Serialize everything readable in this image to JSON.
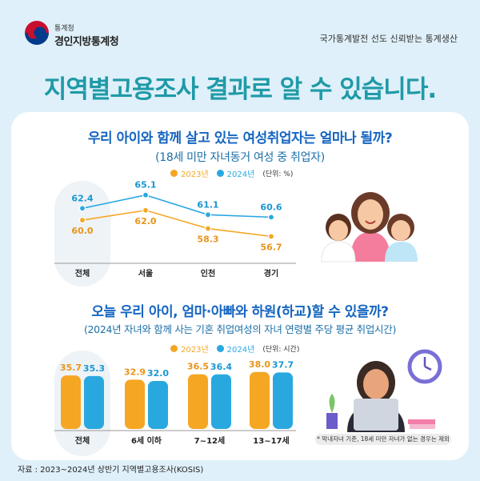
{
  "header": {
    "agency_small": "통계청",
    "agency_name": "경인지방통계청",
    "slogan": "국가통계발전 선도 신뢰받는 통계생산",
    "main_title": "지역별고용조사 결과로 알 수 있습니다."
  },
  "colors": {
    "y2023": "#f5a623",
    "y2024": "#29a8e0",
    "title_teal": "#1f9aa7",
    "title_blue": "#1565c0"
  },
  "section1": {
    "title": "우리 아이와 함께 살고 있는 여성취업자는 얼마나 될까?",
    "subtitle": "(18세 미만 자녀동거 여성 중 취업자)",
    "legend_2023": "2023년",
    "legend_2024": "2024년",
    "unit": "(단위: %)"
  },
  "section2": {
    "title": "오늘 우리 아이, 엄마·아빠와 하원(하교)할 수 있을까?",
    "subtitle": "(2024년 자녀와 함께 사는 기혼 취업여성의 자녀 연령별 주당 평균 취업시간)",
    "legend_2023": "2023년",
    "legend_2024": "2024년",
    "unit": "(단위: 시간)",
    "note": "* 막내자녀 기준, 18세 미만 자녀가 없는 경우는 제외"
  },
  "source": "자료 : 2023~2024년 상반기 지역별고용조사(KOSIS)",
  "chart_data": [
    {
      "type": "line",
      "categories": [
        "전체",
        "서울",
        "인천",
        "경기"
      ],
      "series": [
        {
          "name": "2023년",
          "values": [
            60.0,
            62.0,
            58.3,
            56.7
          ]
        },
        {
          "name": "2024년",
          "values": [
            62.4,
            65.1,
            61.1,
            60.6
          ]
        }
      ],
      "ylim": [
        54,
        67
      ],
      "legend": "top-center",
      "grid": false
    },
    {
      "type": "bar",
      "categories": [
        "전체",
        "6세 이하",
        "7~12세",
        "13~17세"
      ],
      "series": [
        {
          "name": "2023년",
          "values": [
            35.7,
            32.9,
            36.5,
            38.0
          ]
        },
        {
          "name": "2024년",
          "values": [
            35.3,
            32.0,
            36.4,
            37.7
          ]
        }
      ],
      "ylim": [
        0,
        40
      ],
      "legend": "top-center",
      "grid": false
    }
  ]
}
